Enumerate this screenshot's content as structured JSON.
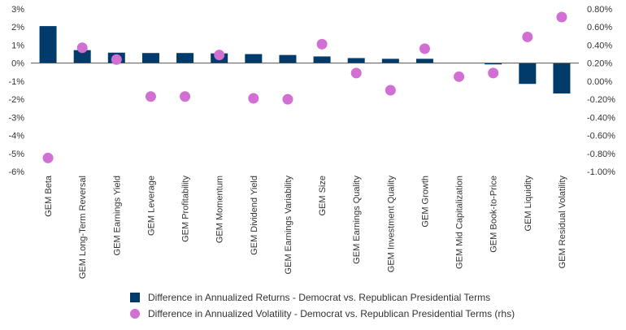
{
  "chart_data": {
    "type": "bar",
    "categories": [
      "GEM Beta",
      "GEM Long-Term Reversal",
      "GEM Earnings Yield",
      "GEM Leverage",
      "GEM Profitability",
      "GEM Momentum",
      "GEM Dividend Yield",
      "GEM Earnings Variability",
      "GEM Size",
      "GEM Earnings Quality",
      "GEM Investment Quality",
      "GEM Growth",
      "GEM Mid Capitalization",
      "GEM Book-to-Price",
      "GEM Liquidity",
      "GEM Residual Volatility"
    ],
    "series": [
      {
        "name": "Difference in Annualized Returns - Democrat vs. Republican Presidential Terms",
        "type": "bar",
        "axis": "left",
        "color": "#003b6b",
        "values": [
          2.05,
          0.72,
          0.58,
          0.56,
          0.56,
          0.54,
          0.5,
          0.45,
          0.37,
          0.28,
          0.24,
          0.24,
          0.0,
          -0.07,
          -1.15,
          -1.68
        ]
      },
      {
        "name": "Difference in Annualized Volatility - Democrat vs. Republican Presidential Terms (rhs)",
        "type": "scatter",
        "axis": "right",
        "color": "#d26fd2",
        "values": [
          -0.85,
          0.37,
          0.24,
          -0.17,
          -0.17,
          0.29,
          -0.19,
          -0.2,
          0.41,
          0.09,
          -0.1,
          0.36,
          0.05,
          0.09,
          0.49,
          0.71
        ]
      }
    ],
    "y_left": {
      "ylim": [
        -6,
        3
      ],
      "ticks": [
        "3%",
        "2%",
        "1%",
        "0%",
        "-1%",
        "-2%",
        "-3%",
        "-4%",
        "-5%",
        "-6%"
      ]
    },
    "y_right": {
      "ylim": [
        -1.0,
        0.8
      ],
      "ticks": [
        "0.80%",
        "0.60%",
        "0.40%",
        "0.20%",
        "0.00%",
        "-0.20%",
        "-0.40%",
        "-0.60%",
        "-0.80%",
        "-1.00%"
      ]
    },
    "grid": false,
    "legend_position": "bottom"
  }
}
